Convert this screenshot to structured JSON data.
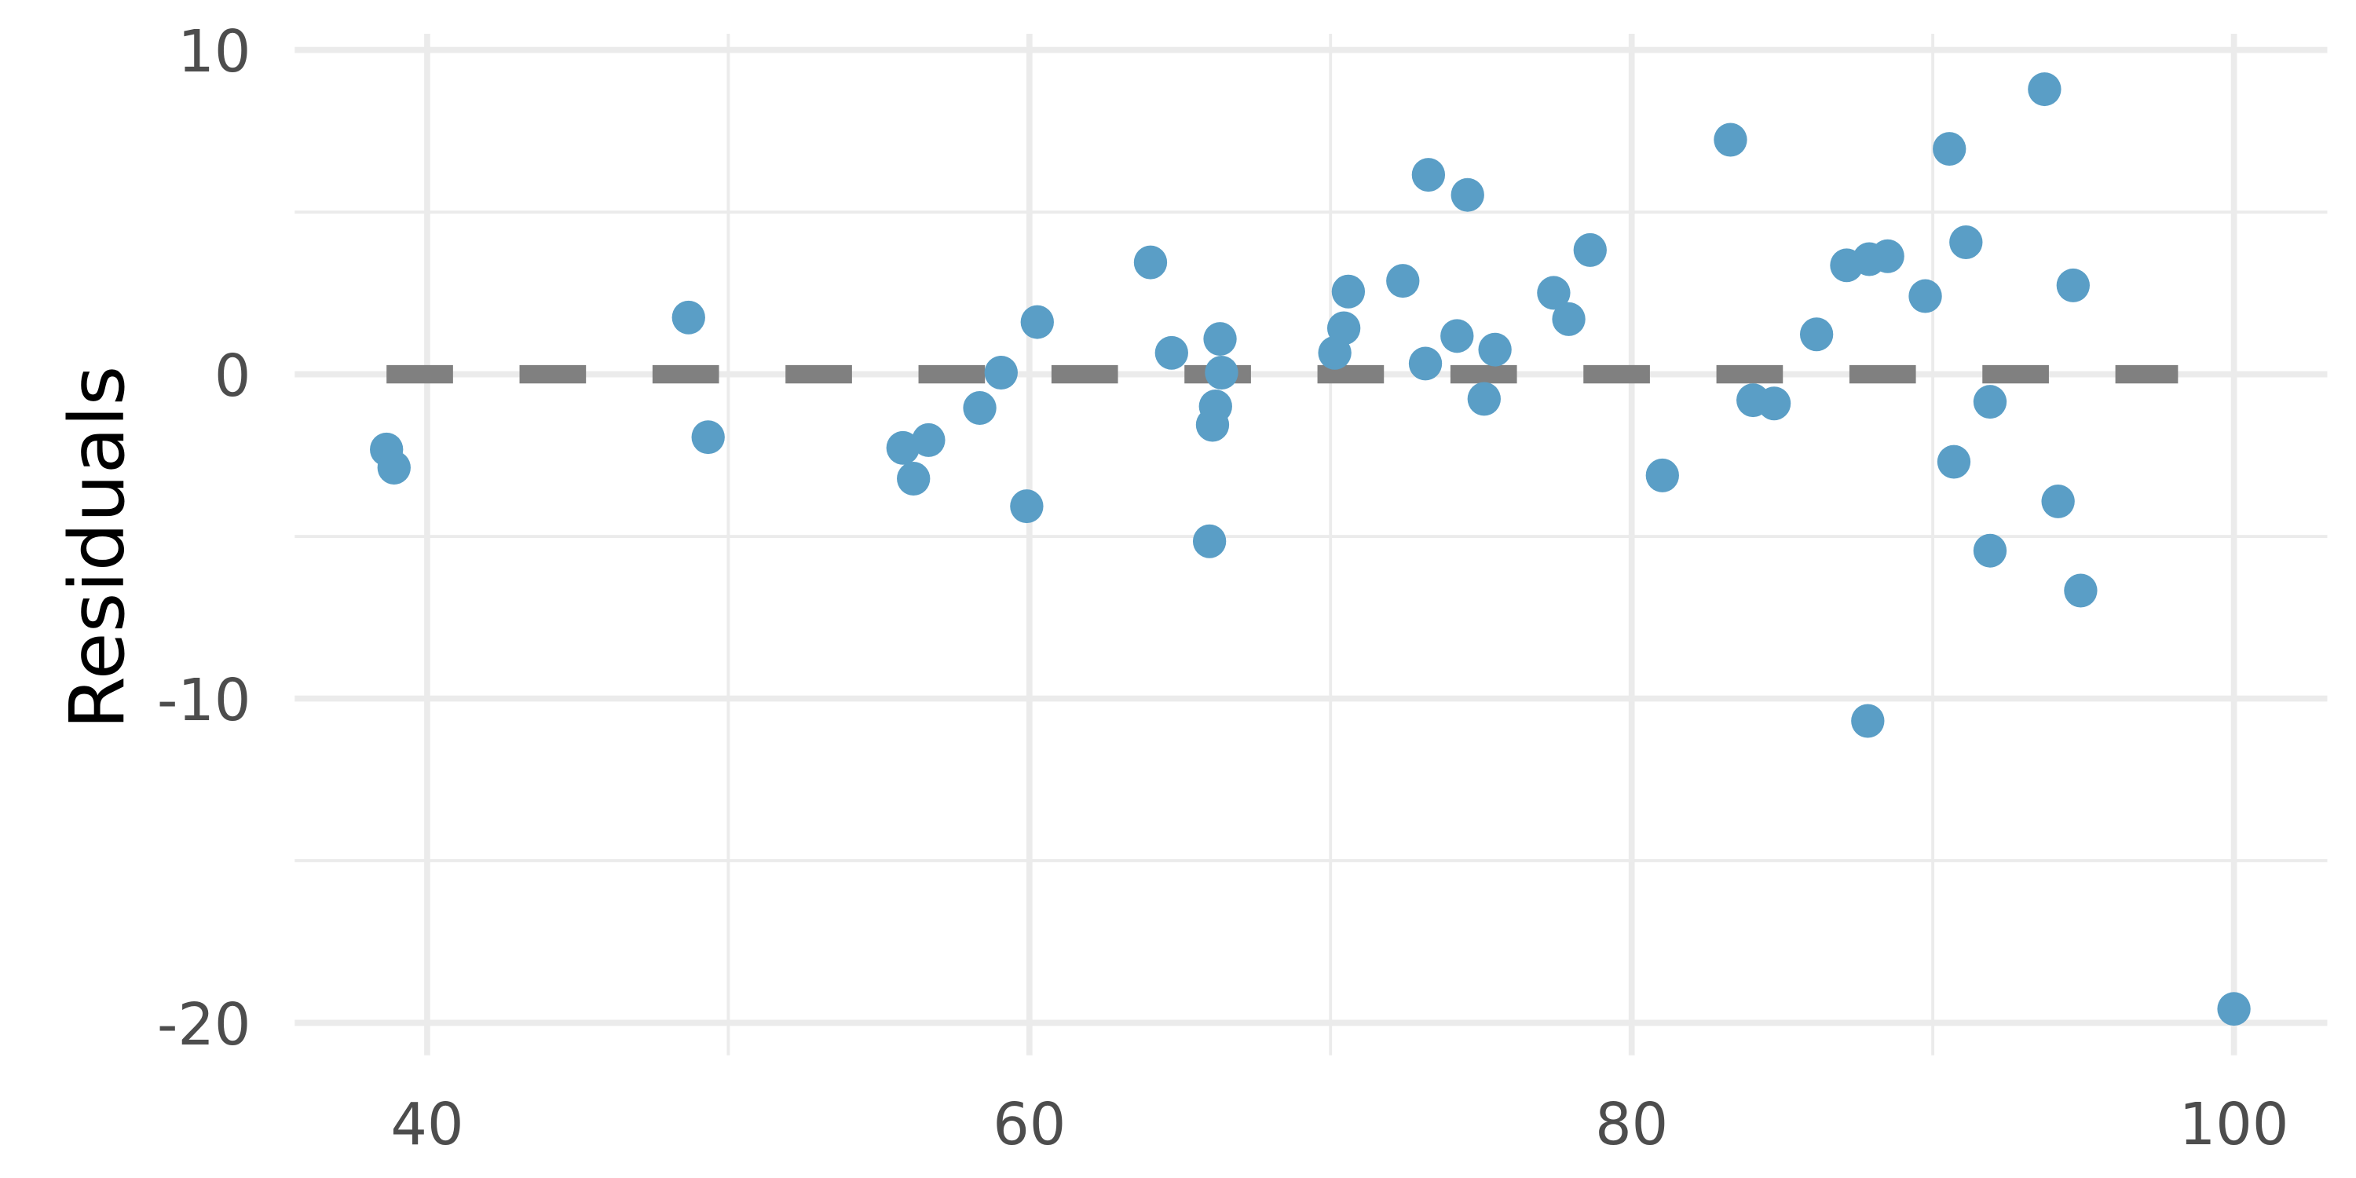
{
  "chart_data": {
    "type": "scatter",
    "y_label": "Residuals",
    "xlim": [
      35.6,
      103.1
    ],
    "ylim": [
      -21,
      10.5
    ],
    "xticks": [
      40,
      60,
      80,
      100
    ],
    "yticks": [
      -20,
      -10,
      0,
      10
    ],
    "minor_xticks": [
      50,
      70,
      90
    ],
    "minor_yticks": [
      -15,
      -5,
      5
    ],
    "grid": true,
    "reference_line": {
      "y": 0,
      "color": "#808080"
    },
    "series": [
      {
        "color": "#5a9ec6",
        "x": [
          38.65,
          38.9,
          48.68,
          49.33,
          55.8,
          56.15,
          56.65,
          58.35,
          59.06,
          59.91,
          60.26,
          64.02,
          64.72,
          65.98,
          66.08,
          66.18,
          66.33,
          66.38,
          70.14,
          70.44,
          70.59,
          72.4,
          73.15,
          73.25,
          74.2,
          74.55,
          75.1,
          75.46,
          77.41,
          77.91,
          78.62,
          81.02,
          83.28,
          84.03,
          84.73,
          86.14,
          87.14,
          87.89,
          87.84,
          88.5,
          89.75,
          90.55,
          90.7,
          91.1,
          91.9,
          91.9,
          93.71,
          94.16,
          94.66,
          94.91,
          100
        ],
        "values": [
          -2.32,
          -2.88,
          1.75,
          -1.94,
          -2.27,
          -3.22,
          -2.03,
          -1.04,
          0.05,
          -4.07,
          1.61,
          3.45,
          0.66,
          -5.15,
          -1.56,
          -0.99,
          1.09,
          0.05,
          0.66,
          1.42,
          2.55,
          2.88,
          0.33,
          6.15,
          1.18,
          5.53,
          -0.76,
          0.76,
          2.51,
          1.7,
          3.83,
          -3.12,
          7.23,
          -0.8,
          -0.9,
          1.23,
          3.36,
          3.55,
          -10.69,
          3.64,
          2.41,
          6.95,
          -2.7,
          4.07,
          -0.85,
          -5.44,
          8.79,
          -3.92,
          2.74,
          -6.67,
          -19.57
        ]
      }
    ]
  }
}
